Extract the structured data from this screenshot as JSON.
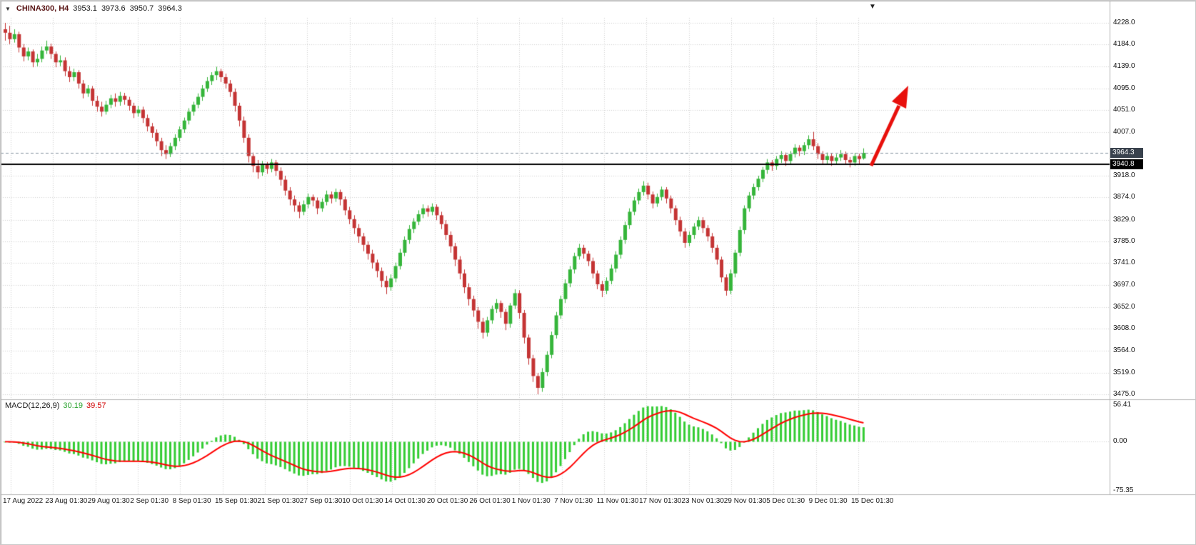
{
  "header": {
    "dropdown_icon": "▼",
    "symbol": "CHINA300, H4",
    "open": "3953.1",
    "high": "3973.6",
    "low": "3950.7",
    "close": "3964.3"
  },
  "icons": {
    "shift_marker": "▼"
  },
  "price_axis": {
    "current_price_badge": "3964.3",
    "hline_badge": "3940.8"
  },
  "macd_panel": {
    "label": "MACD(12,26,9)",
    "main_value": "30.19",
    "signal_value": "39.57"
  },
  "colors": {
    "bull": "#35b53a",
    "bear": "#c43434",
    "grid": "#d2d2d2",
    "border": "#b5b5b5",
    "hline": "#000000",
    "current_line": "#8a97a3",
    "macd_bar": "#33cc33",
    "macd_signal": "#ff0000",
    "arrow": "#e8100c"
  },
  "chart_data": {
    "type": "candlestick",
    "symbol": "CHINA300",
    "timeframe": "H4",
    "title": "CHINA300, H4 3953.1 3973.6 3950.7 3964.3",
    "ylim": [
      3475.0,
      4228.0
    ],
    "y_ticks": [
      "4228.0",
      "4184.0",
      "4139.0",
      "4095.0",
      "4051.0",
      "4007.0",
      "3918.0",
      "3874.0",
      "3829.0",
      "3785.0",
      "3741.0",
      "3697.0",
      "3652.0",
      "3608.0",
      "3564.0",
      "3519.0",
      "3475.0"
    ],
    "current_price": 3964.3,
    "hline_price": 3940.8,
    "x_labels": [
      "17 Aug 2022",
      "23 Aug 01:30",
      "29 Aug 01:30",
      "2 Sep 01:30",
      "8 Sep 01:30",
      "15 Sep 01:30",
      "21 Sep 01:30",
      "27 Sep 01:30",
      "10 Oct 01:30",
      "14 Oct 01:30",
      "20 Oct 01:30",
      "26 Oct 01:30",
      "1 Nov 01:30",
      "7 Nov 01:30",
      "11 Nov 01:30",
      "17 Nov 01:30",
      "23 Nov 01:30",
      "29 Nov 01:30",
      "5 Dec 01:30",
      "9 Dec 01:30",
      "15 Dec 01:30"
    ],
    "indicator": {
      "name": "MACD",
      "fast": 12,
      "slow": 26,
      "signal": 9,
      "ticks": [
        "56.41",
        "0.00",
        "-75.35"
      ],
      "ylim": [
        -75.35,
        56.41
      ]
    },
    "candles": [
      [
        4215,
        4228,
        4192,
        4208
      ],
      [
        4208,
        4222,
        4185,
        4195
      ],
      [
        4195,
        4215,
        4188,
        4205
      ],
      [
        4205,
        4210,
        4168,
        4178
      ],
      [
        4178,
        4185,
        4150,
        4160
      ],
      [
        4160,
        4178,
        4152,
        4170
      ],
      [
        4170,
        4174,
        4138,
        4148
      ],
      [
        4148,
        4165,
        4140,
        4155
      ],
      [
        4155,
        4180,
        4148,
        4172
      ],
      [
        4172,
        4192,
        4165,
        4180
      ],
      [
        4180,
        4186,
        4155,
        4165
      ],
      [
        4165,
        4170,
        4138,
        4148
      ],
      [
        4148,
        4162,
        4140,
        4152
      ],
      [
        4152,
        4158,
        4120,
        4130
      ],
      [
        4130,
        4140,
        4108,
        4118
      ],
      [
        4118,
        4135,
        4110,
        4128
      ],
      [
        4128,
        4132,
        4095,
        4105
      ],
      [
        4105,
        4112,
        4075,
        4085
      ],
      [
        4085,
        4102,
        4078,
        4095
      ],
      [
        4095,
        4100,
        4060,
        4070
      ],
      [
        4070,
        4080,
        4048,
        4058
      ],
      [
        4058,
        4068,
        4038,
        4048
      ],
      [
        4048,
        4070,
        4042,
        4062
      ],
      [
        4062,
        4082,
        4055,
        4075
      ],
      [
        4075,
        4085,
        4058,
        4068
      ],
      [
        4068,
        4088,
        4060,
        4080
      ],
      [
        4080,
        4086,
        4062,
        4072
      ],
      [
        4072,
        4078,
        4050,
        4060
      ],
      [
        4060,
        4066,
        4035,
        4045
      ],
      [
        4045,
        4060,
        4038,
        4052
      ],
      [
        4052,
        4058,
        4025,
        4035
      ],
      [
        4035,
        4042,
        4008,
        4018
      ],
      [
        4018,
        4025,
        3995,
        4005
      ],
      [
        4005,
        4012,
        3978,
        3988
      ],
      [
        3988,
        3995,
        3958,
        3970
      ],
      [
        3970,
        3980,
        3952,
        3962
      ],
      [
        3962,
        3985,
        3956,
        3978
      ],
      [
        3978,
        4002,
        3970,
        3995
      ],
      [
        3995,
        4018,
        3988,
        4012
      ],
      [
        4012,
        4036,
        4005,
        4030
      ],
      [
        4030,
        4055,
        4022,
        4048
      ],
      [
        4048,
        4068,
        4040,
        4062
      ],
      [
        4062,
        4085,
        4055,
        4078
      ],
      [
        4078,
        4102,
        4070,
        4095
      ],
      [
        4095,
        4118,
        4088,
        4110
      ],
      [
        4110,
        4128,
        4102,
        4122
      ],
      [
        4122,
        4139,
        4112,
        4130
      ],
      [
        4130,
        4135,
        4108,
        4118
      ],
      [
        4118,
        4125,
        4095,
        4105
      ],
      [
        4105,
        4112,
        4078,
        4088
      ],
      [
        4088,
        4095,
        4048,
        4060
      ],
      [
        4060,
        4066,
        4018,
        4030
      ],
      [
        4030,
        4038,
        3985,
        3995
      ],
      [
        3995,
        4002,
        3945,
        3958
      ],
      [
        3958,
        3965,
        3925,
        3938
      ],
      [
        3938,
        3950,
        3912,
        3925
      ],
      [
        3925,
        3948,
        3918,
        3940
      ],
      [
        3940,
        3946,
        3922,
        3932
      ],
      [
        3932,
        3952,
        3925,
        3945
      ],
      [
        3945,
        3950,
        3918,
        3928
      ],
      [
        3928,
        3935,
        3898,
        3910
      ],
      [
        3910,
        3918,
        3878,
        3888
      ],
      [
        3888,
        3895,
        3858,
        3870
      ],
      [
        3870,
        3878,
        3845,
        3858
      ],
      [
        3858,
        3865,
        3832,
        3845
      ],
      [
        3845,
        3868,
        3838,
        3860
      ],
      [
        3860,
        3882,
        3852,
        3875
      ],
      [
        3875,
        3880,
        3856,
        3868
      ],
      [
        3868,
        3874,
        3840,
        3852
      ],
      [
        3852,
        3872,
        3845,
        3865
      ],
      [
        3865,
        3888,
        3858,
        3880
      ],
      [
        3880,
        3886,
        3862,
        3872
      ],
      [
        3872,
        3892,
        3865,
        3885
      ],
      [
        3885,
        3890,
        3858,
        3870
      ],
      [
        3870,
        3876,
        3838,
        3848
      ],
      [
        3848,
        3855,
        3820,
        3830
      ],
      [
        3830,
        3838,
        3800,
        3812
      ],
      [
        3812,
        3820,
        3782,
        3795
      ],
      [
        3795,
        3802,
        3765,
        3778
      ],
      [
        3778,
        3785,
        3748,
        3760
      ],
      [
        3760,
        3768,
        3730,
        3742
      ],
      [
        3742,
        3748,
        3712,
        3725
      ],
      [
        3725,
        3732,
        3692,
        3705
      ],
      [
        3705,
        3715,
        3678,
        3692
      ],
      [
        3692,
        3718,
        3685,
        3710
      ],
      [
        3710,
        3742,
        3702,
        3735
      ],
      [
        3735,
        3770,
        3728,
        3762
      ],
      [
        3762,
        3795,
        3755,
        3788
      ],
      [
        3788,
        3818,
        3780,
        3810
      ],
      [
        3810,
        3832,
        3802,
        3825
      ],
      [
        3825,
        3848,
        3818,
        3840
      ],
      [
        3840,
        3860,
        3832,
        3852
      ],
      [
        3852,
        3858,
        3835,
        3845
      ],
      [
        3845,
        3862,
        3838,
        3855
      ],
      [
        3855,
        3860,
        3828,
        3838
      ],
      [
        3838,
        3845,
        3810,
        3820
      ],
      [
        3820,
        3828,
        3788,
        3798
      ],
      [
        3798,
        3805,
        3762,
        3775
      ],
      [
        3775,
        3782,
        3735,
        3748
      ],
      [
        3748,
        3755,
        3708,
        3720
      ],
      [
        3720,
        3728,
        3680,
        3692
      ],
      [
        3692,
        3700,
        3655,
        3668
      ],
      [
        3668,
        3675,
        3632,
        3645
      ],
      [
        3645,
        3652,
        3608,
        3622
      ],
      [
        3622,
        3630,
        3588,
        3600
      ],
      [
        3600,
        3632,
        3592,
        3625
      ],
      [
        3625,
        3655,
        3618,
        3648
      ],
      [
        3648,
        3668,
        3640,
        3660
      ],
      [
        3660,
        3665,
        3630,
        3642
      ],
      [
        3642,
        3648,
        3605,
        3618
      ],
      [
        3618,
        3660,
        3610,
        3655
      ],
      [
        3655,
        3688,
        3648,
        3680
      ],
      [
        3680,
        3686,
        3628,
        3640
      ],
      [
        3640,
        3646,
        3578,
        3590
      ],
      [
        3590,
        3596,
        3535,
        3548
      ],
      [
        3548,
        3555,
        3500,
        3512
      ],
      [
        3512,
        3518,
        3475,
        3488
      ],
      [
        3488,
        3528,
        3480,
        3520
      ],
      [
        3520,
        3562,
        3512,
        3555
      ],
      [
        3555,
        3602,
        3548,
        3595
      ],
      [
        3595,
        3642,
        3588,
        3635
      ],
      [
        3635,
        3675,
        3628,
        3668
      ],
      [
        3668,
        3708,
        3660,
        3700
      ],
      [
        3700,
        3735,
        3692,
        3728
      ],
      [
        3728,
        3762,
        3720,
        3755
      ],
      [
        3755,
        3780,
        3748,
        3772
      ],
      [
        3772,
        3778,
        3750,
        3760
      ],
      [
        3760,
        3766,
        3735,
        3745
      ],
      [
        3745,
        3752,
        3710,
        3720
      ],
      [
        3720,
        3726,
        3688,
        3698
      ],
      [
        3698,
        3705,
        3672,
        3685
      ],
      [
        3685,
        3712,
        3678,
        3705
      ],
      [
        3705,
        3738,
        3698,
        3730
      ],
      [
        3730,
        3765,
        3722,
        3758
      ],
      [
        3758,
        3795,
        3750,
        3788
      ],
      [
        3788,
        3825,
        3780,
        3818
      ],
      [
        3818,
        3852,
        3810,
        3845
      ],
      [
        3845,
        3875,
        3838,
        3868
      ],
      [
        3868,
        3892,
        3860,
        3885
      ],
      [
        3885,
        3907,
        3878,
        3898
      ],
      [
        3898,
        3904,
        3870,
        3880
      ],
      [
        3880,
        3886,
        3852,
        3862
      ],
      [
        3862,
        3882,
        3855,
        3875
      ],
      [
        3875,
        3896,
        3868,
        3890
      ],
      [
        3890,
        3895,
        3862,
        3872
      ],
      [
        3872,
        3878,
        3842,
        3852
      ],
      [
        3852,
        3858,
        3818,
        3828
      ],
      [
        3828,
        3835,
        3795,
        3805
      ],
      [
        3805,
        3812,
        3772,
        3782
      ],
      [
        3782,
        3805,
        3775,
        3798
      ],
      [
        3798,
        3822,
        3790,
        3815
      ],
      [
        3815,
        3835,
        3808,
        3828
      ],
      [
        3828,
        3834,
        3802,
        3812
      ],
      [
        3812,
        3818,
        3785,
        3795
      ],
      [
        3795,
        3802,
        3762,
        3772
      ],
      [
        3772,
        3778,
        3738,
        3748
      ],
      [
        3748,
        3754,
        3702,
        3712
      ],
      [
        3712,
        3718,
        3675,
        3685
      ],
      [
        3685,
        3728,
        3678,
        3720
      ],
      [
        3720,
        3768,
        3712,
        3762
      ],
      [
        3762,
        3815,
        3755,
        3808
      ],
      [
        3808,
        3858,
        3800,
        3852
      ],
      [
        3852,
        3885,
        3845,
        3878
      ],
      [
        3878,
        3902,
        3870,
        3895
      ],
      [
        3895,
        3918,
        3888,
        3912
      ],
      [
        3912,
        3936,
        3905,
        3930
      ],
      [
        3930,
        3952,
        3922,
        3945
      ],
      [
        3945,
        3950,
        3928,
        3938
      ],
      [
        3938,
        3958,
        3930,
        3952
      ],
      [
        3952,
        3968,
        3944,
        3960
      ],
      [
        3960,
        3965,
        3938,
        3948
      ],
      [
        3948,
        3968,
        3940,
        3962
      ],
      [
        3962,
        3982,
        3955,
        3975
      ],
      [
        3975,
        3980,
        3958,
        3968
      ],
      [
        3968,
        3986,
        3960,
        3980
      ],
      [
        3980,
        4000,
        3972,
        3992
      ],
      [
        3992,
        4007,
        3970,
        3978
      ],
      [
        3978,
        3984,
        3952,
        3962
      ],
      [
        3962,
        3968,
        3940,
        3950
      ],
      [
        3950,
        3965,
        3942,
        3958
      ],
      [
        3958,
        3963,
        3938,
        3948
      ],
      [
        3948,
        3962,
        3940,
        3955
      ],
      [
        3955,
        3970,
        3948,
        3962
      ],
      [
        3962,
        3967,
        3942,
        3950
      ],
      [
        3950,
        3956,
        3935,
        3945
      ],
      [
        3945,
        3964,
        3938,
        3958
      ],
      [
        3958,
        3963,
        3940,
        3952
      ],
      [
        3953.1,
        3973.6,
        3950.7,
        3964.3
      ]
    ]
  }
}
